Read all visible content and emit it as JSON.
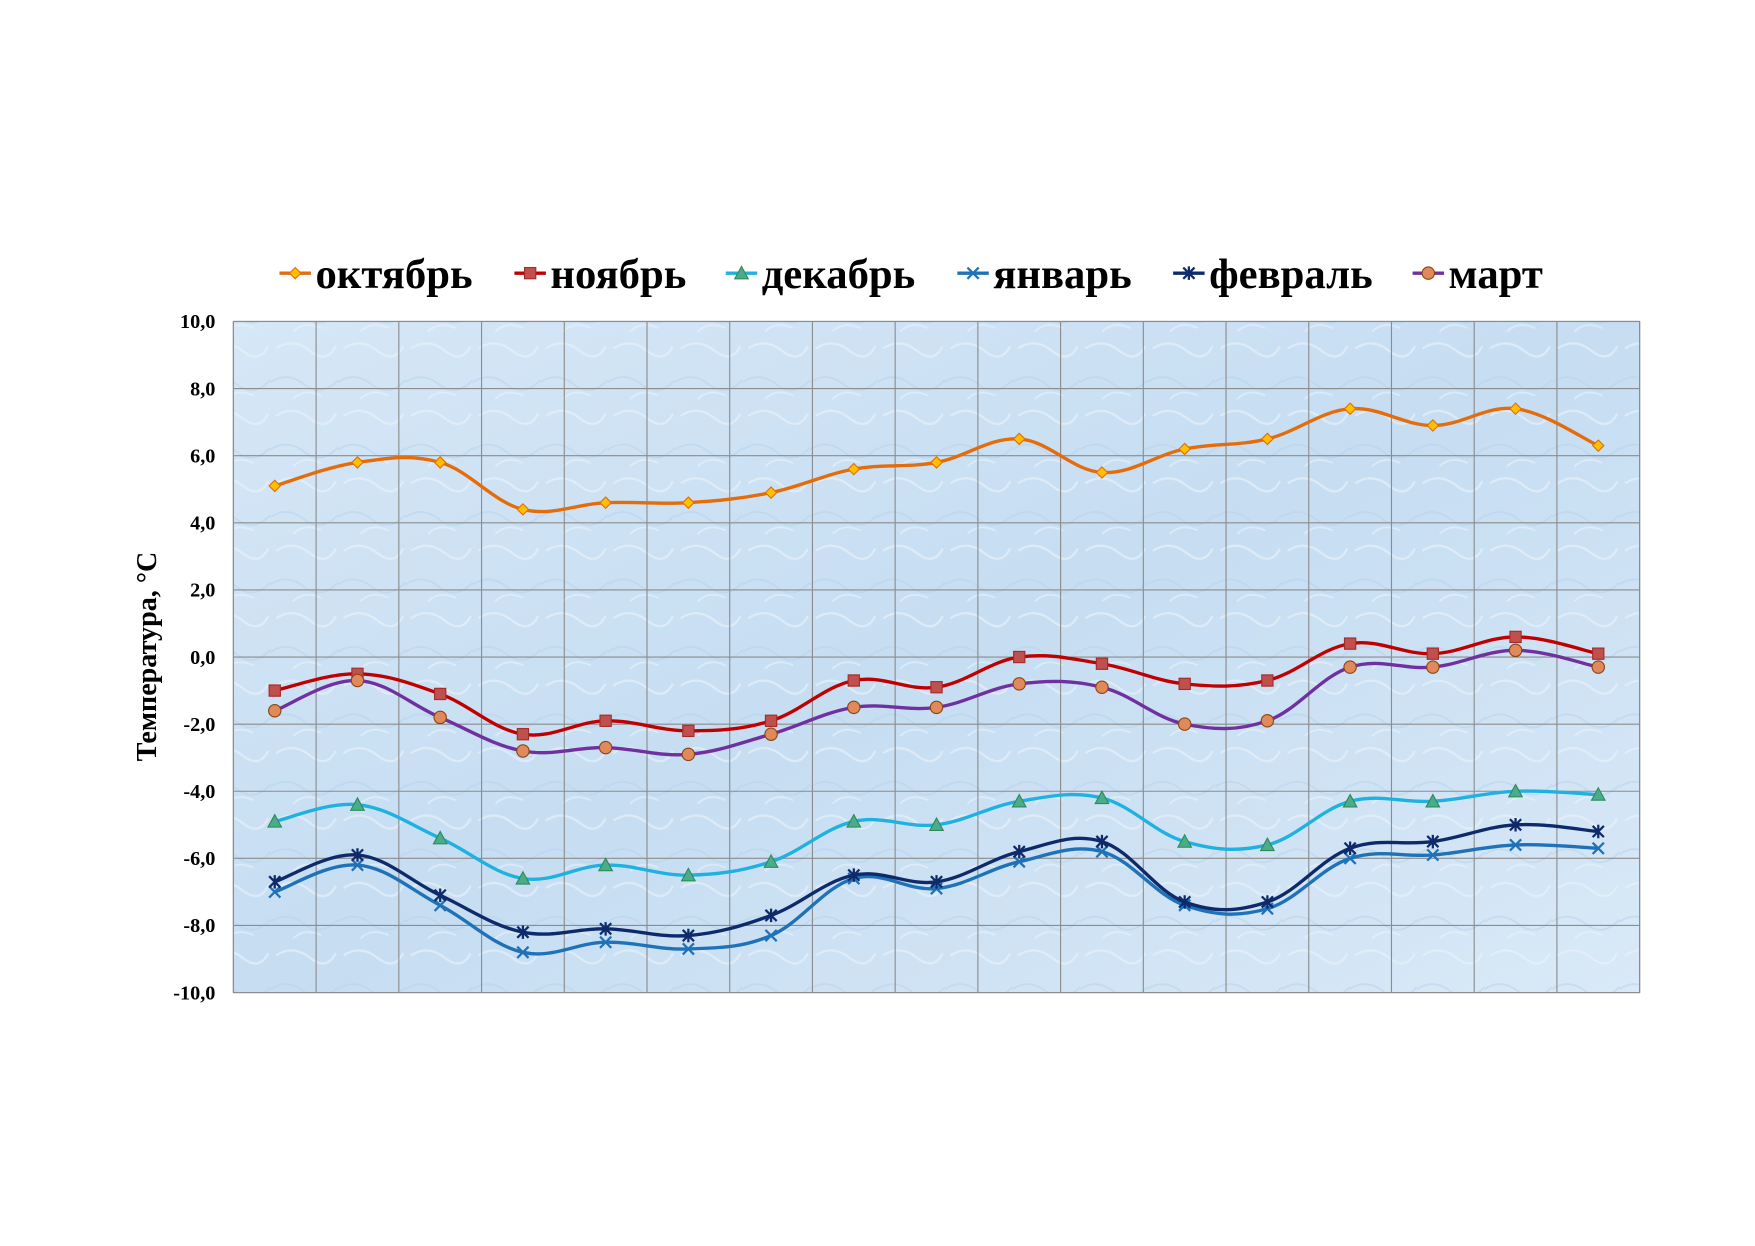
{
  "chart_data": {
    "type": "line",
    "title": "",
    "xlabel": "",
    "ylabel": "Температура, °C",
    "ylim": [
      -10,
      10
    ],
    "yticks": [
      "10,0",
      "8,0",
      "6,0",
      "4,0",
      "2,0",
      "0,0",
      "-2,0",
      "-4,0",
      "-6,0",
      "-8,0",
      "-10,0"
    ],
    "ytick_values": [
      10,
      8,
      6,
      4,
      2,
      0,
      -2,
      -4,
      -6,
      -8,
      -10
    ],
    "x_count": 17,
    "grid": true,
    "legend": "top",
    "series": [
      {
        "name": "октябрь",
        "color": "#E46C0A",
        "marker": "diamond",
        "marker_fill": "#FFC000",
        "values": [
          5.1,
          5.8,
          5.8,
          4.4,
          4.6,
          4.6,
          4.9,
          5.6,
          5.8,
          6.5,
          5.5,
          6.2,
          6.5,
          7.4,
          6.9,
          7.4,
          6.3
        ]
      },
      {
        "name": "ноябрь",
        "color": "#C00000",
        "marker": "square",
        "marker_fill": "#C0504D",
        "values": [
          -1.0,
          -0.5,
          -1.1,
          -2.3,
          -1.9,
          -2.2,
          -1.9,
          -0.7,
          -0.9,
          0.0,
          -0.2,
          -0.8,
          -0.7,
          0.4,
          0.1,
          0.6,
          0.1
        ]
      },
      {
        "name": "декабрь",
        "color": "#1FB1E0",
        "marker": "triangle",
        "marker_fill": "#4BAC8C",
        "values": [
          -4.9,
          -4.4,
          -5.4,
          -6.6,
          -6.2,
          -6.5,
          -6.1,
          -4.9,
          -5.0,
          -4.3,
          -4.2,
          -5.5,
          -5.6,
          -4.3,
          -4.3,
          -4.0,
          -4.1
        ]
      },
      {
        "name": "январь",
        "color": "#1F72B8",
        "marker": "x",
        "marker_fill": "#1F72B8",
        "values": [
          -7.0,
          -6.2,
          -7.4,
          -8.8,
          -8.5,
          -8.7,
          -8.3,
          -6.6,
          -6.9,
          -6.1,
          -5.8,
          -7.4,
          -7.5,
          -6.0,
          -5.9,
          -5.6,
          -5.7
        ]
      },
      {
        "name": "февраль",
        "color": "#0E2A6B",
        "marker": "star",
        "marker_fill": "#0E2A6B",
        "values": [
          -6.7,
          -5.9,
          -7.1,
          -8.2,
          -8.1,
          -8.3,
          -7.7,
          -6.5,
          -6.7,
          -5.8,
          -5.5,
          -7.3,
          -7.3,
          -5.7,
          -5.5,
          -5.0,
          -5.2
        ]
      },
      {
        "name": "март",
        "color": "#7030A0",
        "marker": "circle",
        "marker_fill": "#E0895A",
        "values": [
          -1.6,
          -0.7,
          -1.8,
          -2.8,
          -2.7,
          -2.9,
          -2.3,
          -1.5,
          -1.5,
          -0.8,
          -0.9,
          -2.0,
          -1.9,
          -0.3,
          -0.3,
          0.2,
          -0.3
        ]
      }
    ]
  }
}
